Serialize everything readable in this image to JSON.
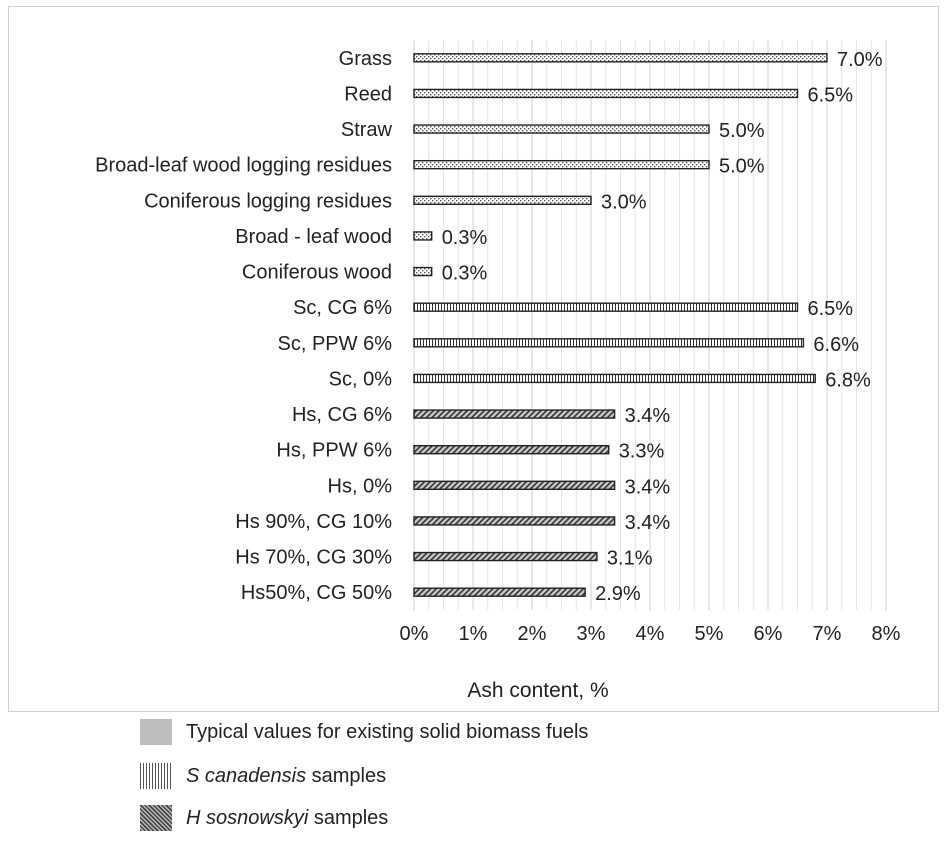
{
  "chart_data": {
    "type": "bar",
    "orientation": "horizontal",
    "xlabel": "Ash content, %",
    "xlim": [
      0,
      8
    ],
    "xticks": [
      "0%",
      "1%",
      "2%",
      "3%",
      "4%",
      "5%",
      "6%",
      "7%",
      "8%"
    ],
    "grid": "vertical minor gridlines",
    "categories": [
      "Grass",
      "Reed",
      "Straw",
      "Broad-leaf wood logging residues",
      "Coniferous logging residues",
      "Broad - leaf wood",
      "Coniferous wood",
      "Sc, CG 6%",
      "Sc, PPW 6%",
      "Sc, 0%",
      "Hs, CG 6%",
      "Hs, PPW 6%",
      "Hs, 0%",
      "Hs 90%, CG 10%",
      "Hs 70%, CG 30%",
      "Hs50%, CG 50%"
    ],
    "values": [
      7.0,
      6.5,
      5.0,
      5.0,
      3.0,
      0.3,
      0.3,
      6.5,
      6.6,
      6.8,
      3.4,
      3.3,
      3.4,
      3.4,
      3.1,
      2.9
    ],
    "labels": [
      "7.0%",
      "6.5%",
      "5.0%",
      "5.0%",
      "3.0%",
      "0.3%",
      "0.3%",
      "6.5%",
      "6.6%",
      "6.8%",
      "3.4%",
      "3.3%",
      "3.4%",
      "3.4%",
      "3.1%",
      "2.9%"
    ],
    "groups": [
      "typical",
      "typical",
      "typical",
      "typical",
      "typical",
      "typical",
      "typical",
      "sc",
      "sc",
      "sc",
      "hs",
      "hs",
      "hs",
      "hs",
      "hs",
      "hs"
    ],
    "legend": [
      {
        "key": "typical",
        "pre_italic": "",
        "italic": "",
        "text": "Typical values for existing solid biomass fuels"
      },
      {
        "key": "sc",
        "pre_italic": "",
        "italic": "S canadensis",
        "text": " samples"
      },
      {
        "key": "hs",
        "pre_italic": "",
        "italic": "H sosnowskyi",
        "text": " samples"
      }
    ],
    "legend_placement": "bottom-left, below plot"
  }
}
